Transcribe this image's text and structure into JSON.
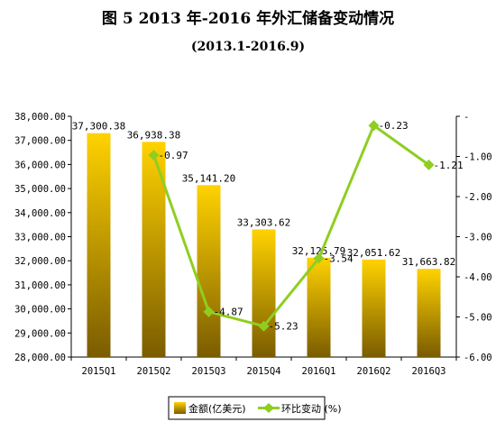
{
  "header": {
    "title": "图 5   2013 年-2016 年外汇储备变动情况",
    "subtitle": "(2013.1-2016.9)"
  },
  "chart_data": {
    "type": "bar",
    "categories": [
      "2015Q1",
      "2015Q2",
      "2015Q3",
      "2015Q4",
      "2016Q1",
      "2016Q2",
      "2016Q3"
    ],
    "series": [
      {
        "name": "金额(亿美元)",
        "type": "bar",
        "axis": "left",
        "values": [
          37300.38,
          36938.38,
          35141.2,
          33303.62,
          32125.79,
          32051.62,
          31663.82
        ],
        "labels": [
          "37,300.38",
          "36,938.38",
          "35,141.20",
          "33,303.62",
          "32,125.79",
          "32,051.62",
          "31,663.82"
        ],
        "color": "#f2c200"
      },
      {
        "name": "环比变动 (%)",
        "type": "line",
        "axis": "right",
        "values": [
          null,
          -0.97,
          -4.87,
          -5.23,
          -3.54,
          -0.23,
          -1.21
        ],
        "labels": [
          "",
          "-0.97",
          "-4.87",
          "-5.23",
          "-3.54",
          "-0.23",
          "-1.21"
        ],
        "color": "#8fce20"
      }
    ],
    "left_axis": {
      "ylim": [
        28000,
        38000
      ],
      "ticks": [
        28000,
        29000,
        30000,
        31000,
        32000,
        33000,
        34000,
        35000,
        36000,
        37000,
        38000
      ],
      "tick_labels": [
        "28,000.00",
        "29,000.00",
        "30,000.00",
        "31,000.00",
        "32,000.00",
        "33,000.00",
        "34,000.00",
        "35,000.00",
        "36,000.00",
        "37,000.00",
        "38,000.00"
      ]
    },
    "right_axis": {
      "ylim": [
        -6,
        0
      ],
      "ticks": [
        0,
        -1,
        -2,
        -3,
        -4,
        -5,
        -6
      ],
      "tick_labels": [
        "-",
        "-1.00",
        "-2.00",
        "-3.00",
        "-4.00",
        "-5.00",
        "-6.00"
      ]
    },
    "legend": {
      "position": "bottom",
      "items": [
        "金额(亿美元)",
        "环比变动 (%)"
      ]
    },
    "grid": false,
    "colors": {
      "bar_top": "#ffd200",
      "bar_bottom": "#7a5c00",
      "line": "#8fce20"
    }
  }
}
